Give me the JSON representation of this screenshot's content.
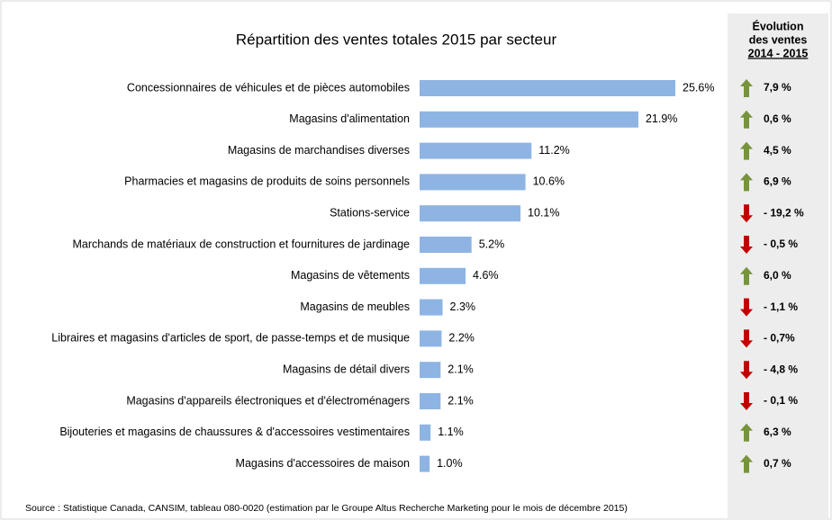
{
  "chart_data": {
    "type": "bar",
    "orientation": "horizontal",
    "title": "Répartition des ventes totales 2015 par secteur",
    "categories": [
      "Concessionnaires de véhicules et de pièces automobiles",
      "Magasins d'alimentation",
      "Magasins de marchandises diverses",
      "Pharmacies et magasins de produits de soins personnels",
      "Stations-service",
      "Marchands de matériaux de construction et fournitures de jardinage",
      "Magasins de vêtements",
      "Magasins de meubles",
      "Libraires et magasins d'articles de sport, de passe-temps et de musique",
      "Magasins de détail divers",
      "Magasins d'appareils électroniques et d'électroménagers",
      "Bijouteries et magasins de chaussures & d'accessoires vestimentaires",
      "Magasins d'accessoires de maison"
    ],
    "values": [
      25.6,
      21.9,
      11.2,
      10.6,
      10.1,
      5.2,
      4.6,
      2.3,
      2.2,
      2.1,
      2.1,
      1.1,
      1.0
    ],
    "value_labels": [
      "25.6%",
      "21.9%",
      "11.2%",
      "10.6%",
      "10.1%",
      "5.2%",
      "4.6%",
      "2.3%",
      "2.2%",
      "2.1%",
      "2.1%",
      "1.1%",
      "1.0%"
    ],
    "color": "#8eb4e3"
  },
  "side_table": {
    "header": [
      "Évolution",
      "des ventes",
      "2014 - 2015"
    ],
    "values": [
      7.9,
      0.6,
      4.5,
      6.9,
      -19.2,
      -0.5,
      6.0,
      -1.1,
      -0.7,
      -4.8,
      -0.1,
      6.3,
      0.7
    ],
    "value_labels": [
      "7,9 %",
      "0,6 %",
      "4,5 %",
      "6,9 %",
      "- 19,2 %",
      "- 0,5 %",
      "6,0 %",
      "- 1,1 %",
      "- 0,7%",
      "- 4,8 %",
      "- 0,1 %",
      "6,3 %",
      "0,7 %"
    ],
    "up_color": "#77933c",
    "down_color": "#c00000"
  },
  "source": "Source : Statistique Canada, CANSIM, tableau 080-0020 (estimation par le Groupe Altus Recherche Marketing pour le mois de décembre 2015)"
}
